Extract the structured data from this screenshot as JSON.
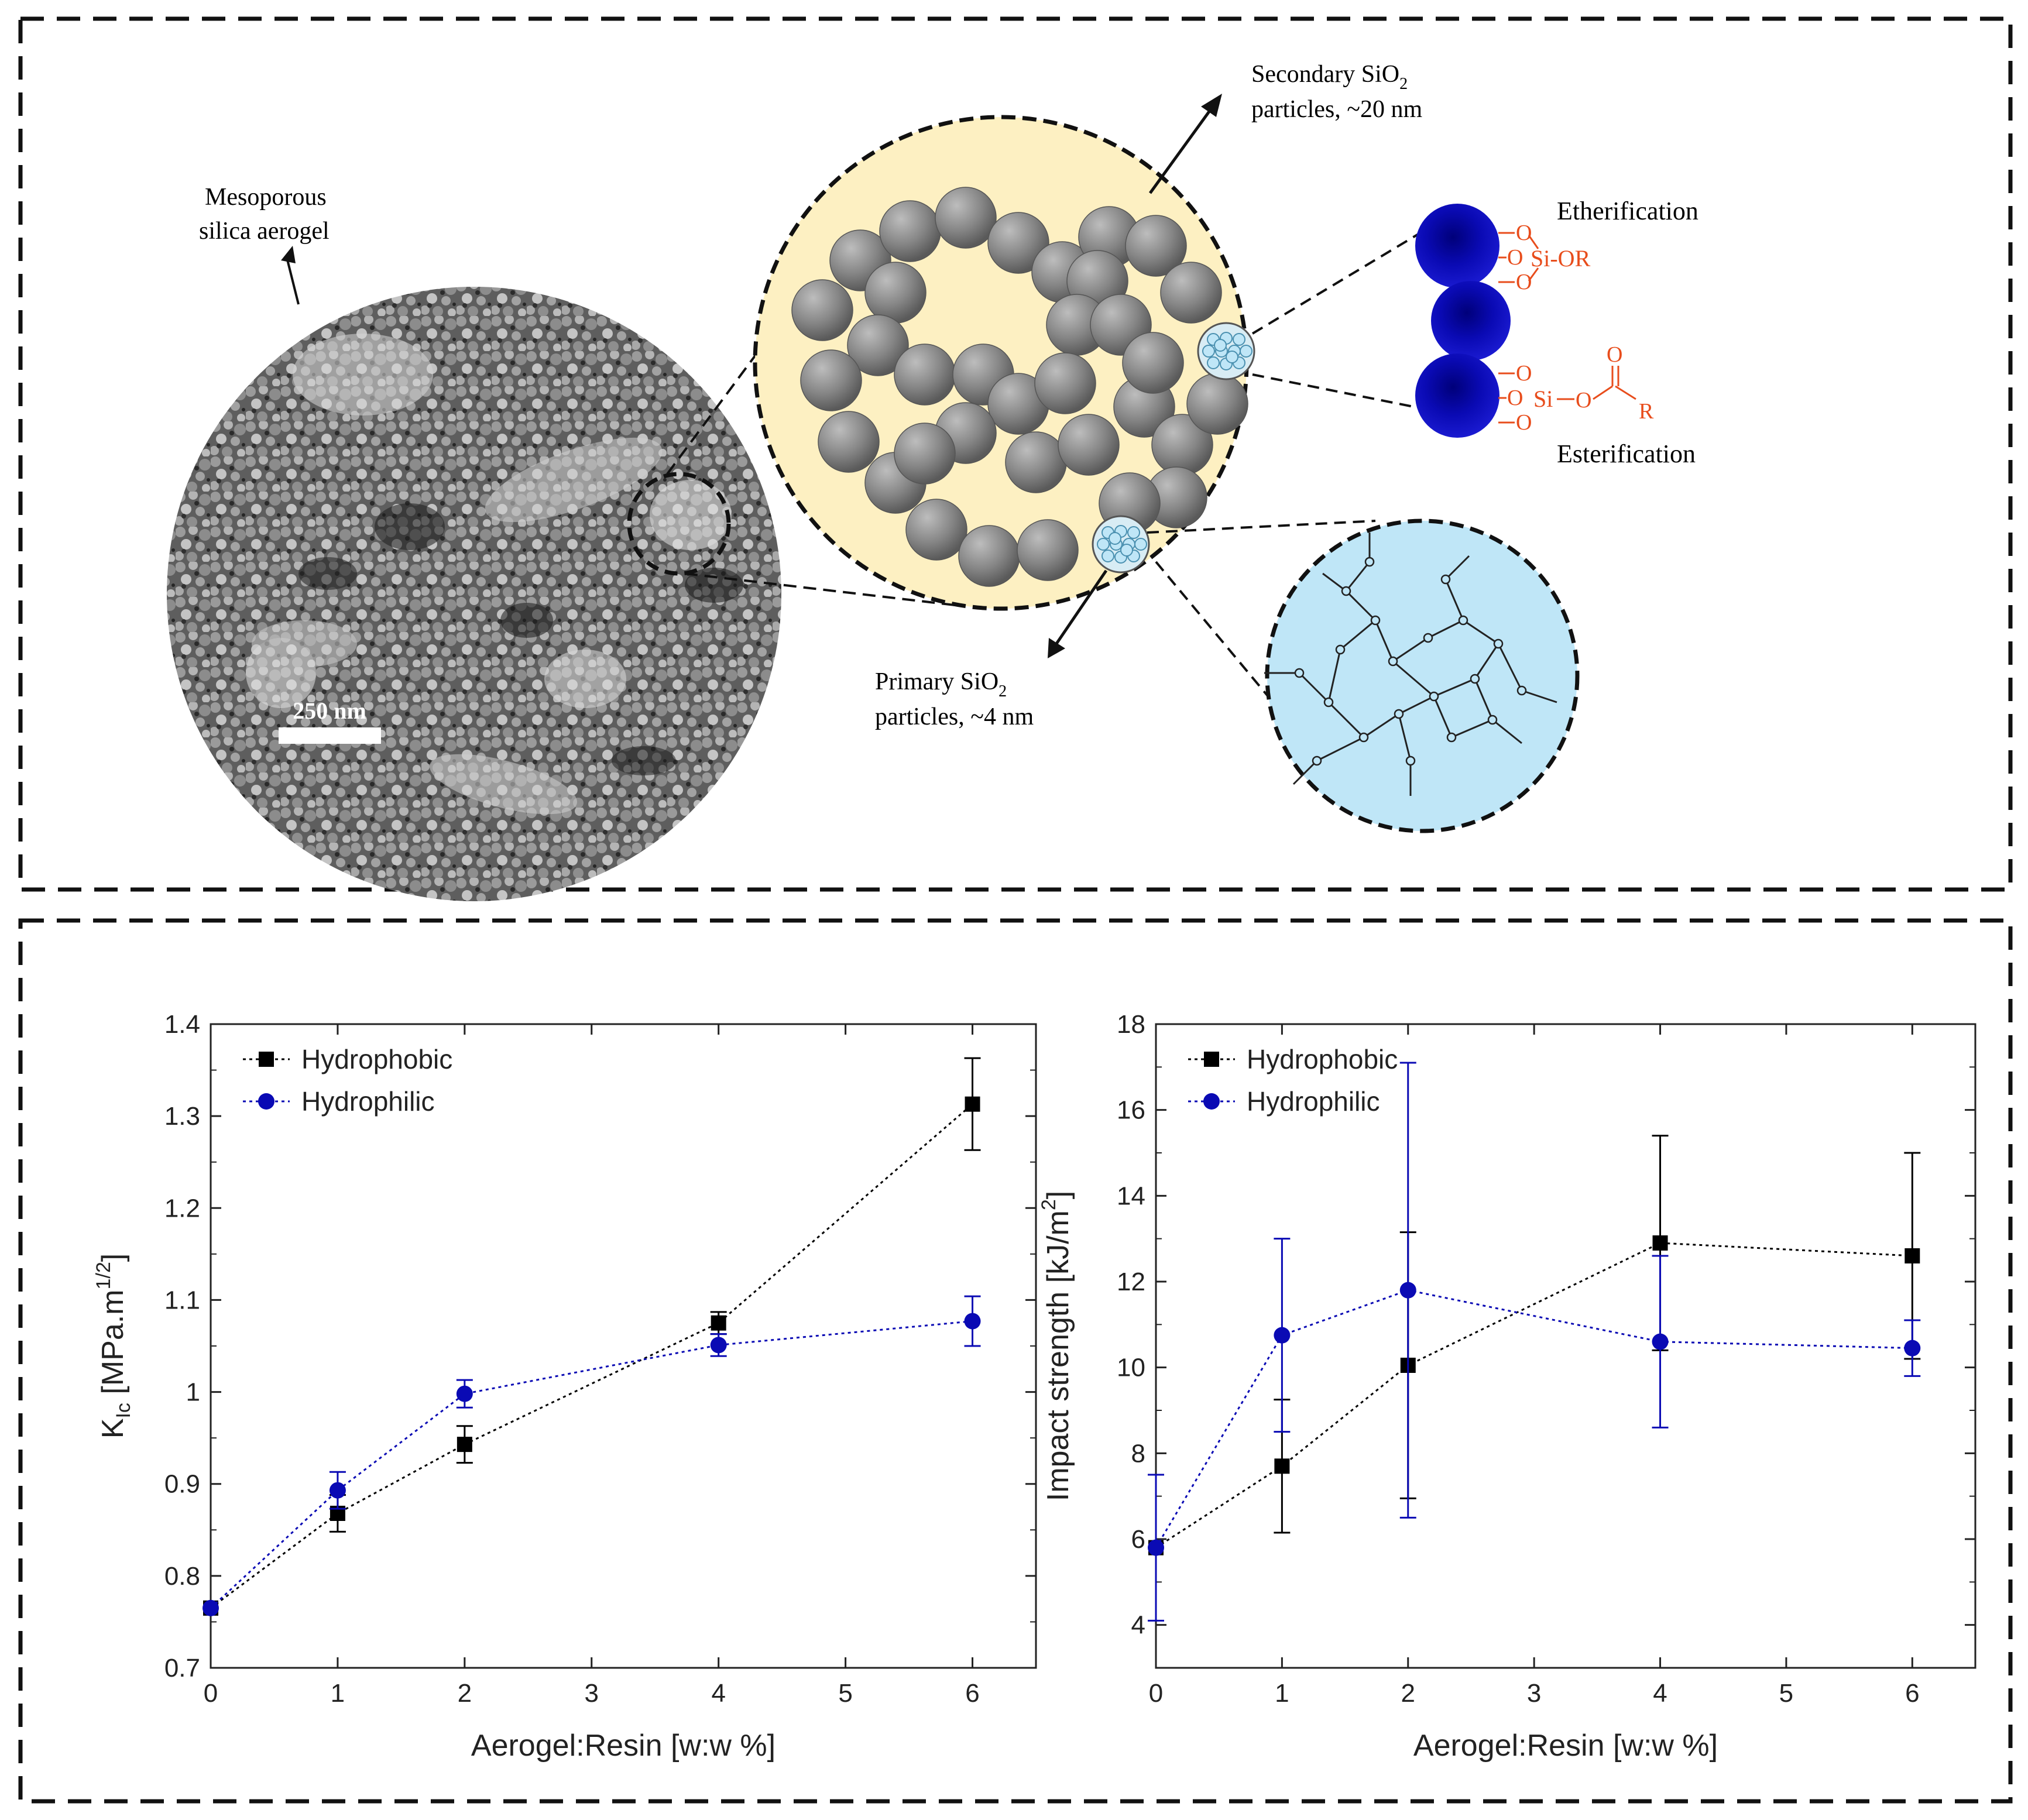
{
  "schematic": {
    "sem_label_line1": "Mesoporous",
    "sem_label_line2": "silica aerogel",
    "scale_bar": "250 nm",
    "secondary_line1": "Secondary SiO",
    "secondary_sub": "2",
    "secondary_line2": "particles, ~20 nm",
    "primary_line1": "Primary SiO",
    "primary_sub": "2",
    "primary_line2": "particles, ~4 nm",
    "etherification": "Etherification",
    "esterification": "Esterification",
    "ether_group": "Si-OR",
    "ester_si": "Si",
    "ester_o": "O",
    "ester_r": "R",
    "o_atom": "O",
    "colors": {
      "dark_blue": "#0a0ab4",
      "red": "#e84d1c",
      "yellow": "#fdf0c2",
      "light_blue": "#bfe6f7",
      "gray_particle": "#7f7f7f"
    }
  },
  "chart_data": [
    {
      "type": "scatter",
      "xlabel": "Aerogel:Resin [w:w %]",
      "ylabel_main": "K",
      "ylabel_sub": "Ic",
      "ylabel_rest": " [MPa.m",
      "ylabel_sup": "1/2",
      "ylabel_end": "]",
      "xlim": [
        0,
        6.5
      ],
      "ylim": [
        0.7,
        1.4
      ],
      "xticks": [
        0,
        1,
        2,
        3,
        4,
        5,
        6
      ],
      "xtick_labels": [
        "0",
        "1",
        "2",
        "3",
        "4",
        "5",
        "6"
      ],
      "yticks": [
        0.7,
        0.8,
        0.9,
        1.0,
        1.1,
        1.2,
        1.3,
        1.4
      ],
      "ytick_labels": [
        "0.7",
        "0.8",
        "0.9",
        "1",
        "1.1",
        "1.2",
        "1.3",
        "1.4"
      ],
      "legend_position": "top-left",
      "series": [
        {
          "name": "Hydrophobic",
          "color": "#000000",
          "marker": "square",
          "x": [
            0,
            1,
            2,
            4,
            6
          ],
          "y": [
            0.765,
            0.868,
            0.943,
            1.075,
            1.313
          ],
          "err": [
            0.0,
            0.02,
            0.02,
            0.012,
            0.05
          ]
        },
        {
          "name": "Hydrophilic",
          "color": "#0a0ab4",
          "marker": "circle",
          "x": [
            0,
            1,
            2,
            4,
            6
          ],
          "y": [
            0.765,
            0.893,
            0.998,
            1.051,
            1.077
          ],
          "err": [
            0.0,
            0.02,
            0.015,
            0.012,
            0.027
          ]
        }
      ]
    },
    {
      "type": "scatter",
      "xlabel": "Aerogel:Resin [w:w %]",
      "ylabel_main": "Impact strength [kJ/m",
      "ylabel_sup": "2",
      "ylabel_end": "]",
      "xlim": [
        0,
        6.5
      ],
      "ylim": [
        3,
        18
      ],
      "xticks": [
        0,
        1,
        2,
        3,
        4,
        5,
        6
      ],
      "xtick_labels": [
        "0",
        "1",
        "2",
        "3",
        "4",
        "5",
        "6"
      ],
      "yticks": [
        4,
        6,
        8,
        10,
        12,
        14,
        16,
        18
      ],
      "ytick_labels": [
        "4",
        "6",
        "8",
        "10",
        "12",
        "14",
        "16",
        "18"
      ],
      "legend_position": "top-left",
      "series": [
        {
          "name": "Hydrophobic",
          "color": "#000000",
          "marker": "square",
          "x": [
            0,
            1,
            2,
            4,
            6
          ],
          "y": [
            5.8,
            7.7,
            10.05,
            12.9,
            12.6
          ],
          "err": [
            0.0,
            1.55,
            3.1,
            2.5,
            2.4
          ]
        },
        {
          "name": "Hydrophilic",
          "color": "#0a0ab4",
          "marker": "circle",
          "x": [
            0,
            1,
            2,
            4,
            6
          ],
          "y": [
            5.8,
            10.75,
            11.8,
            10.6,
            10.45
          ],
          "err": [
            1.7,
            2.25,
            5.3,
            2.0,
            0.65
          ]
        }
      ]
    }
  ]
}
